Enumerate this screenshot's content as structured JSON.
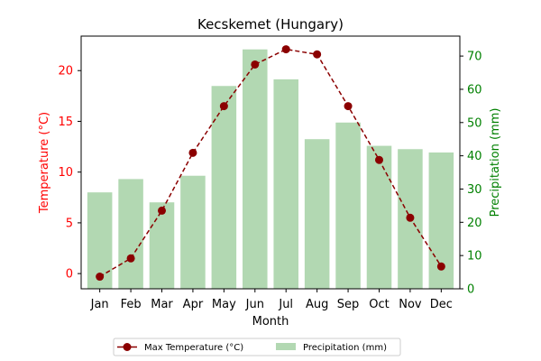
{
  "chart_data": {
    "type": "bar+line",
    "title": "Kecskemet (Hungary)",
    "xlabel": "Month",
    "ylabel_left": "Temperature (°C)",
    "ylabel_right": "Precipitation (mm)",
    "categories": [
      "Jan",
      "Feb",
      "Mar",
      "Apr",
      "May",
      "Jun",
      "Jul",
      "Aug",
      "Sep",
      "Oct",
      "Nov",
      "Dec"
    ],
    "ylim_left": [
      -1.5,
      23.4
    ],
    "yticks_left": [
      0,
      5,
      10,
      15,
      20
    ],
    "ylim_right": [
      0,
      76
    ],
    "yticks_right": [
      0,
      10,
      20,
      30,
      40,
      50,
      60,
      70
    ],
    "series": [
      {
        "name": "Max Temperature (°C)",
        "kind": "line",
        "axis": "left",
        "color": "#8b0000",
        "values": [
          -0.3,
          1.5,
          6.2,
          11.9,
          16.5,
          20.6,
          22.1,
          21.6,
          16.5,
          11.2,
          5.5,
          0.7
        ]
      },
      {
        "name": "Precipitation (mm)",
        "kind": "bar",
        "axis": "right",
        "color": "#b2d8b2",
        "values": [
          29,
          33,
          26,
          34,
          61,
          72,
          63,
          45,
          50,
          43,
          42,
          41
        ]
      }
    ],
    "legend_position": "bottom-center",
    "left_axis_color": "#ff0000",
    "right_axis_color": "#008000",
    "grid": false
  }
}
